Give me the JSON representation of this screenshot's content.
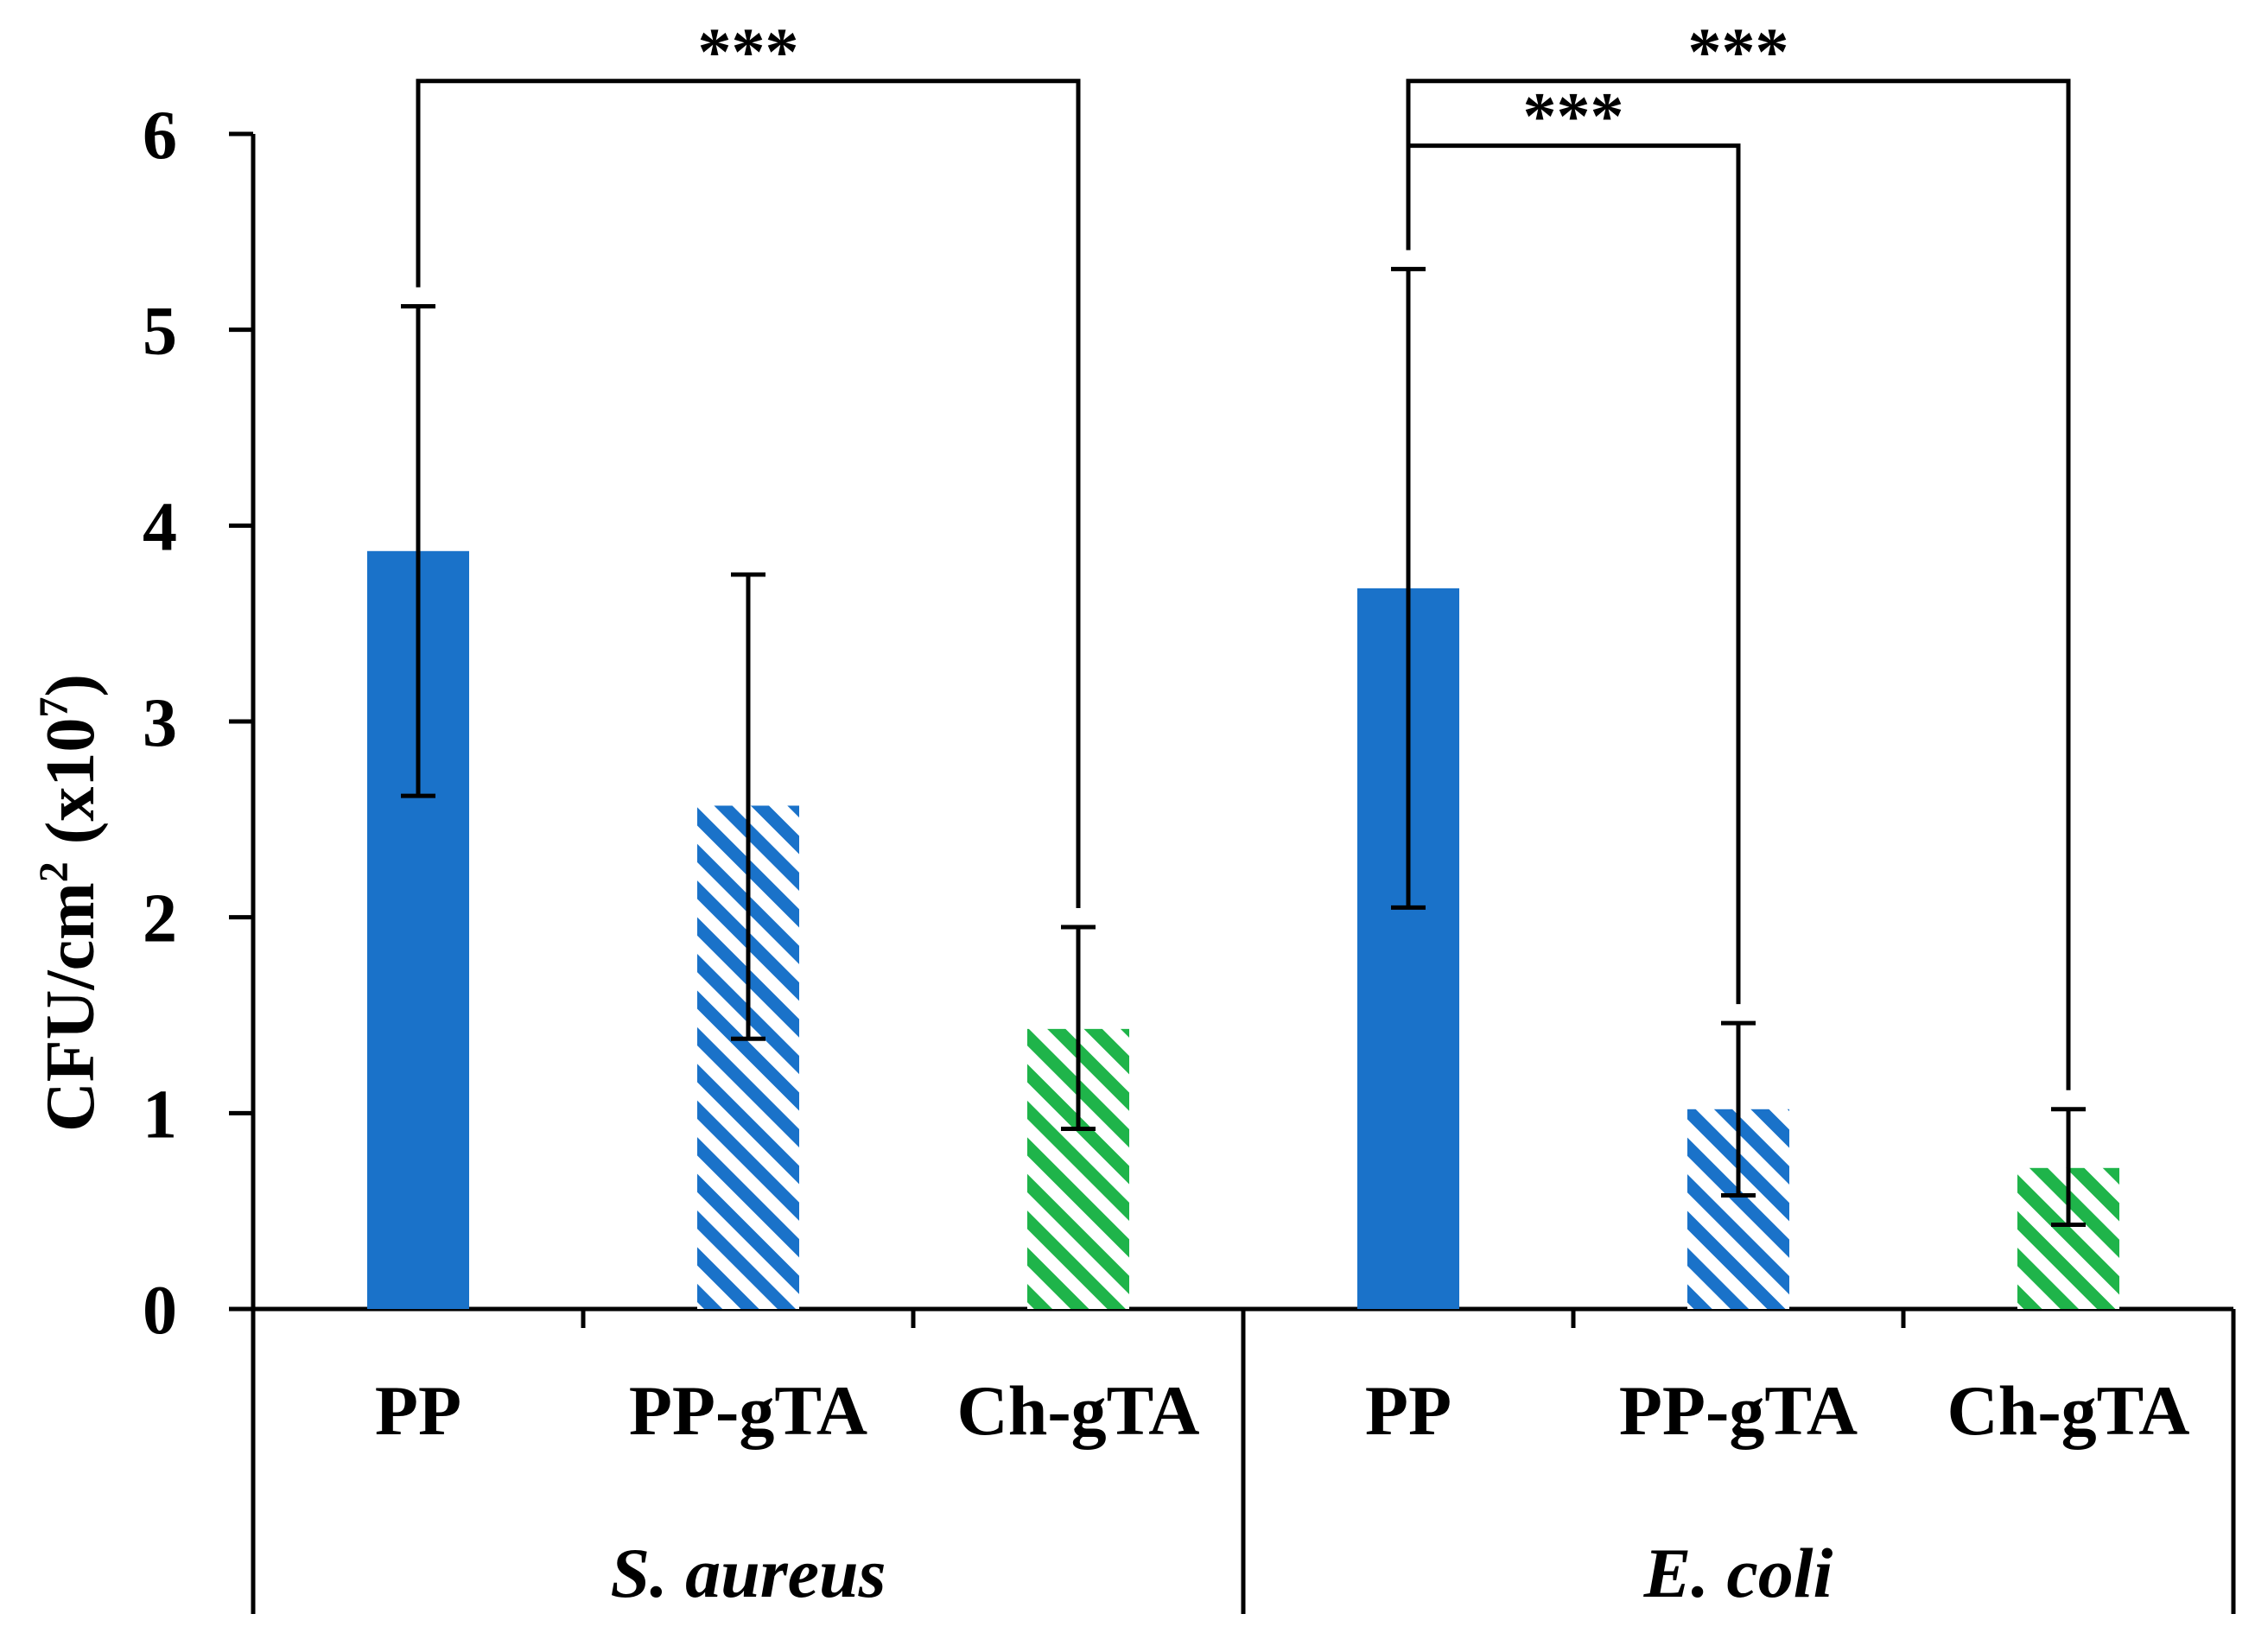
{
  "chart_data": {
    "type": "bar",
    "ylabel": {
      "main": "CFU/cm",
      "sup1": "2",
      "mid": " (x10",
      "sup2": "7",
      "end": ")"
    },
    "ylim": [
      0,
      6
    ],
    "yticks": [
      "0",
      "1",
      "2",
      "3",
      "4",
      "5",
      "6"
    ],
    "grid": false,
    "legend": "none",
    "groups": [
      {
        "name": "S. aureus",
        "bars": [
          {
            "category": "PP",
            "value": 3.87,
            "err_low": 2.62,
            "err_high": 5.12,
            "style": "solid",
            "color": "#1a72c9"
          },
          {
            "category": "PP-gTA",
            "value": 2.57,
            "err_low": 1.38,
            "err_high": 3.75,
            "style": "hatched",
            "color": "#1a72c9"
          },
          {
            "category": "Ch-gTA",
            "value": 1.43,
            "err_low": 0.92,
            "err_high": 1.95,
            "style": "hatched",
            "color": "#1fb44a"
          }
        ]
      },
      {
        "name": "E. coli",
        "bars": [
          {
            "category": "PP",
            "value": 3.68,
            "err_low": 2.05,
            "err_high": 5.31,
            "style": "solid",
            "color": "#1a72c9"
          },
          {
            "category": "PP-gTA",
            "value": 1.02,
            "err_low": 0.58,
            "err_high": 1.46,
            "style": "hatched",
            "color": "#1a72c9"
          },
          {
            "category": "Ch-gTA",
            "value": 0.72,
            "err_low": 0.43,
            "err_high": 1.02,
            "style": "hatched",
            "color": "#1fb44a"
          }
        ]
      }
    ],
    "significance": [
      {
        "from_bar": 0,
        "to_bar": 2,
        "label": "***",
        "level": 6.27
      },
      {
        "from_bar": 3,
        "to_bar": 5,
        "label": "***",
        "level": 6.27
      },
      {
        "from_bar": 3,
        "to_bar": 4,
        "label": "***",
        "level": 5.94
      }
    ]
  }
}
